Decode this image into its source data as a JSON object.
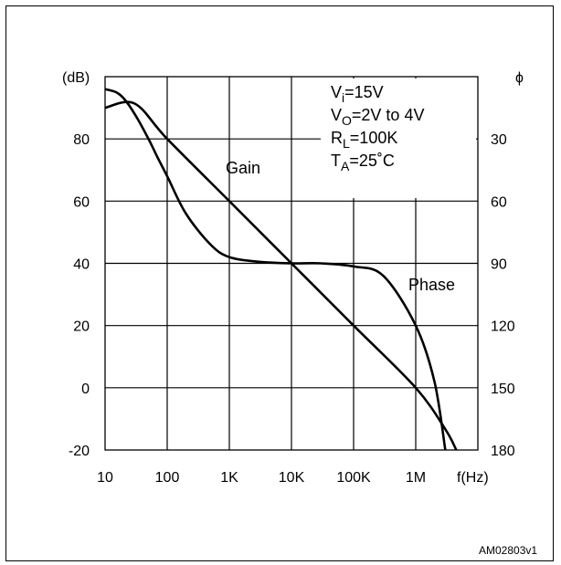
{
  "chart_data": {
    "type": "line",
    "left_axis_unit": "(dB)",
    "right_axis_unit": "ϕ",
    "x_unit": "f(Hz)",
    "x_scale": "log",
    "x_ticks": [
      {
        "value": 10,
        "label": "10"
      },
      {
        "value": 100,
        "label": "100"
      },
      {
        "value": 1000,
        "label": "1K"
      },
      {
        "value": 10000,
        "label": "10K"
      },
      {
        "value": 100000,
        "label": "100K"
      },
      {
        "value": 1000000,
        "label": "1M"
      }
    ],
    "xlim": [
      10,
      10000000
    ],
    "ylim": [
      -20,
      100
    ],
    "y_ticks": [
      {
        "value": 80,
        "label": "80"
      },
      {
        "value": 60,
        "label": "60"
      },
      {
        "value": 40,
        "label": "40"
      },
      {
        "value": 20,
        "label": "20"
      },
      {
        "value": 0,
        "label": "0"
      },
      {
        "value": -20,
        "label": "-20"
      }
    ],
    "phase_ticks": [
      {
        "value": 30,
        "label": "30"
      },
      {
        "value": 60,
        "label": "60"
      },
      {
        "value": 90,
        "label": "90"
      },
      {
        "value": 120,
        "label": "120"
      },
      {
        "value": 150,
        "label": "150"
      },
      {
        "value": 180,
        "label": "180"
      }
    ],
    "grid": true,
    "conditions": [
      {
        "sym": "V",
        "sub": "i",
        "rest": "=15V"
      },
      {
        "sym": "V",
        "sub": "O",
        "rest": "=2V to 4V"
      },
      {
        "sym": "R",
        "sub": "L",
        "rest": "=100K"
      },
      {
        "sym": "T",
        "sub": "A",
        "rest": "=25˚C"
      }
    ],
    "series": [
      {
        "name": "Gain",
        "axis": "left",
        "x": [
          10,
          15,
          20,
          30,
          50,
          70,
          100,
          200,
          500,
          1000,
          3000,
          10000,
          30000,
          100000,
          300000,
          1000000,
          2000000,
          3000000
        ],
        "y": [
          96,
          95,
          93,
          88,
          80,
          74,
          68,
          56,
          46,
          42,
          40.5,
          40,
          40,
          39,
          36,
          20,
          2,
          -20
        ]
      },
      {
        "name": "Phase",
        "axis": "right",
        "x": [
          10,
          30,
          100,
          1000,
          10000,
          100000,
          1000000,
          3000000,
          4500000
        ],
        "phase": [
          15,
          13,
          30,
          60,
          90,
          120,
          150,
          170,
          180
        ]
      }
    ],
    "figure_id": "AM02803v1"
  }
}
